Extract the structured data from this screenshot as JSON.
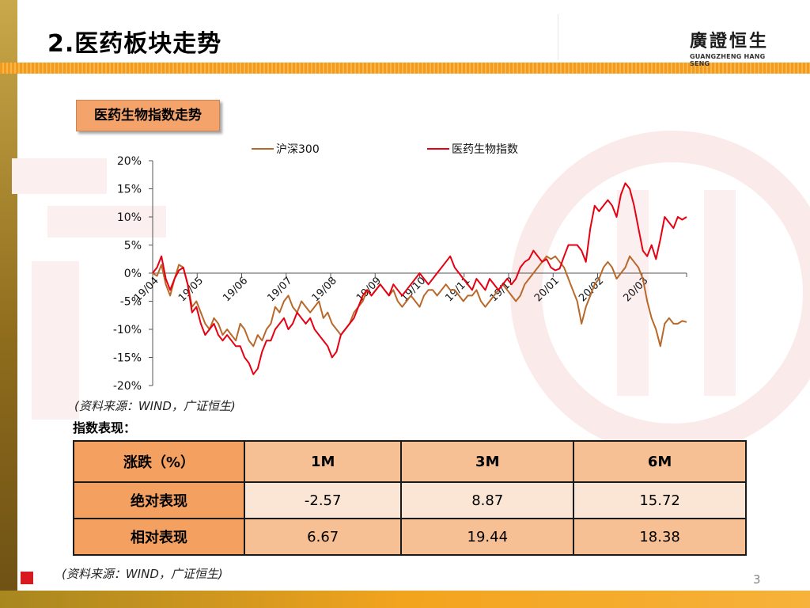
{
  "header": {
    "title": "2.医药板块走势",
    "logo_cn": "廣證恒生",
    "logo_en": "GUANGZHENG HANG SENG"
  },
  "section_label": "医药生物指数走势",
  "chart_data": {
    "type": "line",
    "legend_position": "top",
    "ylim": [
      -20,
      20
    ],
    "y_ticks": [
      "20%",
      "15%",
      "10%",
      "5%",
      "0%",
      "-5%",
      "-10%",
      "-15%",
      "-20%"
    ],
    "x_tick_labels": [
      "19/04",
      "19/05",
      "19/06",
      "19/07",
      "19/08",
      "19/09",
      "19/10",
      "19/11",
      "19/12",
      "20/01",
      "20/02",
      "20/03"
    ],
    "series": [
      {
        "name": "沪深300",
        "color": "#b8692a",
        "values": [
          0,
          -0.5,
          1.5,
          -2,
          -4,
          -1,
          1.5,
          1,
          -2,
          -6,
          -5,
          -7,
          -9,
          -10,
          -8,
          -9,
          -11,
          -10,
          -11,
          -12,
          -9,
          -10,
          -12,
          -13,
          -11,
          -12,
          -10,
          -9,
          -6,
          -7,
          -5,
          -4,
          -6,
          -7,
          -5,
          -6,
          -7,
          -6,
          -5,
          -8,
          -7,
          -9,
          -10,
          -11,
          -10,
          -9,
          -7,
          -6,
          -5,
          -3,
          -4,
          -3,
          -2,
          -3,
          -4,
          -3,
          -5,
          -6,
          -5,
          -4,
          -5,
          -6,
          -4,
          -3,
          -3,
          -4,
          -3,
          -2,
          -3,
          -3,
          -4,
          -5,
          -4,
          -4,
          -3,
          -5,
          -6,
          -5,
          -4,
          -3,
          -2,
          -3,
          -4,
          -5,
          -4,
          -2,
          -1,
          0,
          1,
          2,
          3,
          2.5,
          3,
          2,
          1,
          -1,
          -3,
          -5,
          -9,
          -6,
          -4,
          -2,
          -1,
          1,
          2,
          1,
          -1,
          0,
          1,
          3,
          2,
          1,
          -1,
          -5,
          -8,
          -10,
          -13,
          -9,
          -8,
          -9,
          -9,
          -8.5,
          -8.7
        ]
      },
      {
        "name": "医药生物指数",
        "color": "#e60012",
        "values": [
          0,
          1,
          3,
          -1,
          -3,
          -1,
          0.5,
          1,
          -2,
          -7,
          -6,
          -9,
          -11,
          -10,
          -9,
          -11,
          -12,
          -11,
          -12,
          -13,
          -13,
          -15,
          -16,
          -18,
          -17,
          -14,
          -12,
          -12,
          -10,
          -9,
          -8,
          -10,
          -9,
          -7,
          -8,
          -9,
          -8,
          -10,
          -11,
          -12,
          -13,
          -15,
          -14,
          -11,
          -10,
          -9,
          -8,
          -6,
          -4,
          -3,
          -4,
          -3,
          -2,
          -3,
          -4,
          -2,
          -3,
          -4,
          -3,
          -2,
          -1,
          0,
          -1,
          -2,
          -1,
          0,
          1,
          2,
          3,
          1,
          0,
          -1,
          -2,
          -3,
          -1,
          -2,
          -3,
          -1,
          -2,
          -3,
          -2,
          -1,
          -2,
          -1,
          1,
          2,
          2.5,
          4,
          3,
          2,
          2.5,
          1,
          0.5,
          0.8,
          3,
          5,
          5,
          5,
          4,
          2,
          8,
          12,
          11,
          12,
          13,
          12,
          10,
          14,
          16,
          15,
          12,
          8,
          4,
          3,
          5,
          2.5,
          6,
          10,
          9,
          8,
          10,
          9.5,
          10
        ]
      }
    ]
  },
  "source_1": "(资料来源：WIND，广证恒生)",
  "performance": {
    "title": "指数表现：",
    "header": [
      "涨跌（%）",
      "1M",
      "3M",
      "6M"
    ],
    "rows": [
      {
        "label": "绝对表现",
        "values": [
          "-2.57",
          "8.87",
          "15.72"
        ]
      },
      {
        "label": "相对表现",
        "values": [
          "6.67",
          "19.44",
          "18.38"
        ]
      }
    ]
  },
  "source_2": "(资料来源：WIND，广证恒生)",
  "page_number": "3"
}
